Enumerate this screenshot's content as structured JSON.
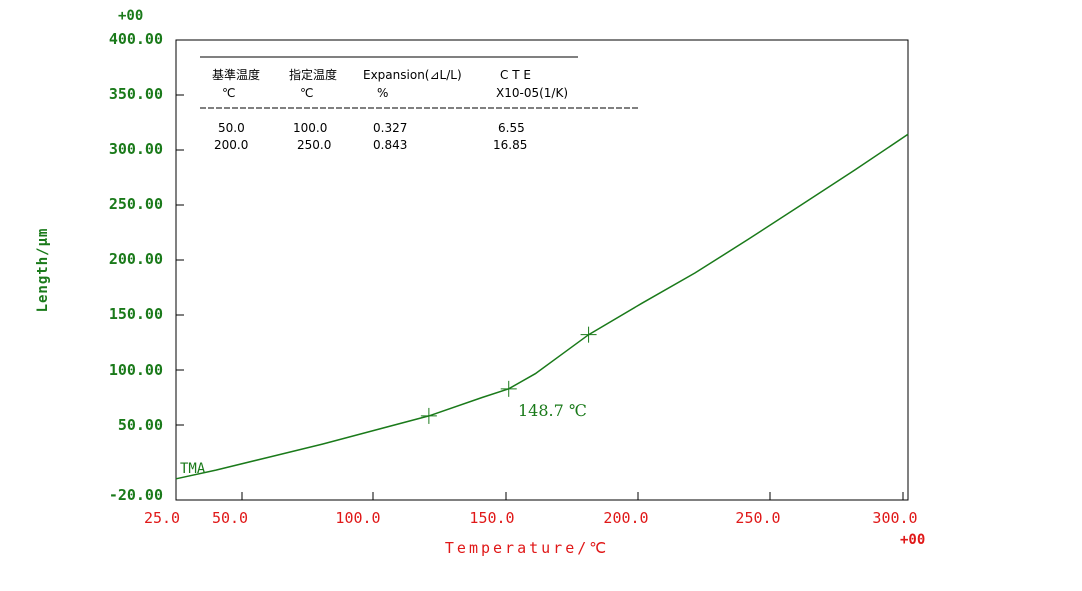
{
  "chart_data": {
    "type": "line",
    "xlabel": "Temperature/℃",
    "ylabel": "Length/μm",
    "x_exponent": "+00",
    "y_exponent": "+00",
    "xlim": [
      25.0,
      300.0
    ],
    "ylim": [
      -20.0,
      400.0
    ],
    "x_ticks": [
      "25.0",
      "50.0",
      "100.0",
      "150.0",
      "200.0",
      "250.0",
      "300.0"
    ],
    "y_ticks": [
      "-20.00",
      "50.00",
      "100.00",
      "150.00",
      "200.00",
      "250.00",
      "300.00",
      "350.00",
      "400.00"
    ],
    "series": [
      {
        "name": "TMA",
        "x": [
          25,
          40,
          60,
          80,
          100,
          120,
          140,
          150,
          160,
          170,
          180,
          200,
          220,
          240,
          260,
          280,
          300
        ],
        "y": [
          -5,
          3,
          15,
          27,
          40,
          53,
          70,
          78,
          92,
          110,
          128,
          157,
          185,
          216,
          248,
          280,
          313
        ]
      }
    ],
    "markers": [
      {
        "x": 120,
        "y": 53
      },
      {
        "x": 150,
        "y": 78
      },
      {
        "x": 180,
        "y": 128
      }
    ],
    "annotations": [
      {
        "text": "148.7 ℃",
        "x": 155,
        "y": 42
      }
    ],
    "series_label": "TMA",
    "grid": false
  },
  "results_table": {
    "headers": [
      "基準温度",
      "指定温度",
      "Expansion(⊿L/L)",
      "C T E"
    ],
    "units": [
      "℃",
      "℃",
      "%",
      "X10-05(1/K)"
    ],
    "rows": [
      [
        "50.0",
        "100.0",
        "0.327",
        "6.55"
      ],
      [
        "200.0",
        "250.0",
        "0.843",
        "16.85"
      ]
    ]
  },
  "colors": {
    "curve": "#1a7a1a",
    "y_axis_text": "#1a7a1a",
    "x_axis_text": "#e01818",
    "axes": "#000000"
  }
}
